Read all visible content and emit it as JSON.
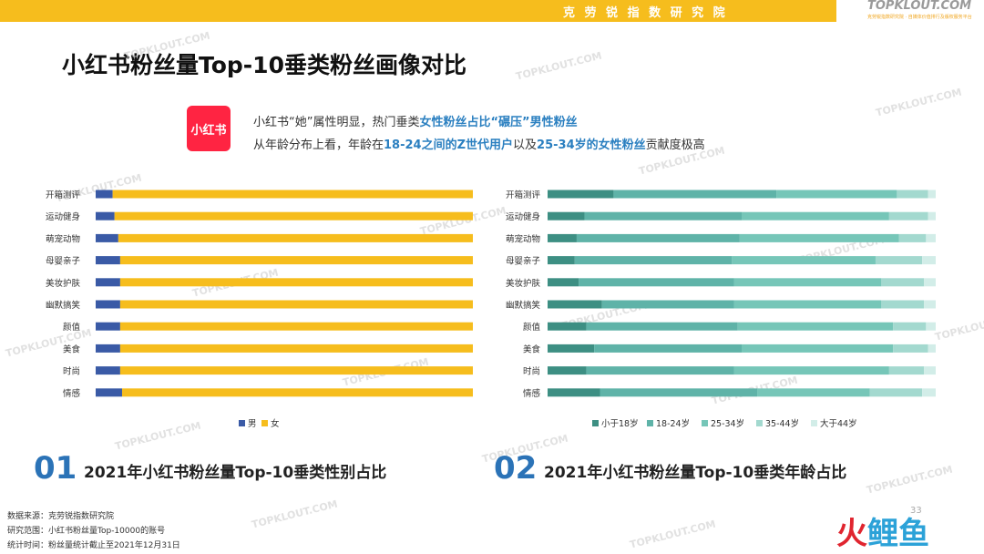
{
  "header": {
    "institute": "克 劳 锐 指 数 研 究 院",
    "brand": "TOPKLOUT.COM",
    "brand_sub": "克劳锐指数研究院 · 自媒体价值排行及版权服务平台"
  },
  "page_title": "小红书粉丝量Top-10垂类粉丝画像对比",
  "logo_text": "小红书",
  "insight": {
    "line1_a": "小红书“她”属性明显，热门垂类",
    "line1_b": "女性粉丝占比“碾压”男性粉丝",
    "line2_a": "从年龄分布上看，年龄在",
    "line2_b": "18-24之间的Z世代用户",
    "line2_c": "以及",
    "line2_d": "25-34岁的女性粉丝",
    "line2_e": "贡献度极高"
  },
  "watermark": "TOPKLOUT.COM",
  "colors": {
    "male": "#3a5aa6",
    "female": "#f6bd1d",
    "age": [
      "#3d8f83",
      "#5fb3a8",
      "#76c6b8",
      "#a3d9cf",
      "#d2ede8"
    ]
  },
  "chart_data": [
    {
      "type": "bar",
      "orientation": "horizontal",
      "stacked": "100%",
      "title": "2021年小红书粉丝量Top-10垂类性别占比",
      "number": "01",
      "categories": [
        "开箱测评",
        "运动健身",
        "萌宠动物",
        "母婴亲子",
        "美妆护肤",
        "幽默搞笑",
        "颜值",
        "美食",
        "时尚",
        "情感"
      ],
      "series": [
        {
          "name": "男",
          "values": [
            4.5,
            5,
            6,
            6.5,
            6.5,
            6.5,
            6.5,
            6.5,
            6.5,
            7
          ]
        },
        {
          "name": "女",
          "values": [
            95.5,
            95,
            94,
            93.5,
            93.5,
            93.5,
            93.5,
            93.5,
            93.5,
            93
          ]
        }
      ],
      "legend": "bottom",
      "xlim": [
        0,
        100
      ]
    },
    {
      "type": "bar",
      "orientation": "horizontal",
      "stacked": "100%",
      "title": "2021年小红书粉丝量Top-10垂类年龄占比",
      "number": "02",
      "categories": [
        "开箱测评",
        "运动健身",
        "萌宠动物",
        "母婴亲子",
        "美妆护肤",
        "幽默搞笑",
        "颜值",
        "美食",
        "时尚",
        "情感"
      ],
      "series": [
        {
          "name": "小于18岁",
          "values": [
            17,
            9.5,
            7.5,
            7,
            8,
            14,
            10,
            12,
            10,
            13.5
          ]
        },
        {
          "name": "18-24岁",
          "values": [
            42,
            40.5,
            42,
            40.5,
            40,
            34,
            39,
            38,
            38,
            40.5
          ]
        },
        {
          "name": "25-34岁",
          "values": [
            31,
            38,
            41,
            37,
            38,
            38,
            40,
            39,
            40,
            29
          ]
        },
        {
          "name": "35-44岁",
          "values": [
            8,
            10,
            7,
            12,
            11,
            11,
            8.5,
            9,
            9,
            13.5
          ]
        },
        {
          "name": "大于44岁",
          "values": [
            2,
            2,
            2.5,
            3.5,
            3,
            3,
            2.5,
            2,
            3,
            3.5
          ]
        }
      ],
      "legend": "bottom",
      "xlim": [
        0,
        100
      ]
    }
  ],
  "footer": {
    "source": "数据来源：克劳锐指数研究院",
    "scope": "研究范围：小红书粉丝量Top-10000的账号",
    "time": "统计时间：粉丝量统计截止至2021年12月31日"
  },
  "page_number": "33",
  "corner_logo": {
    "a": "火",
    "b": "鲤鱼"
  }
}
